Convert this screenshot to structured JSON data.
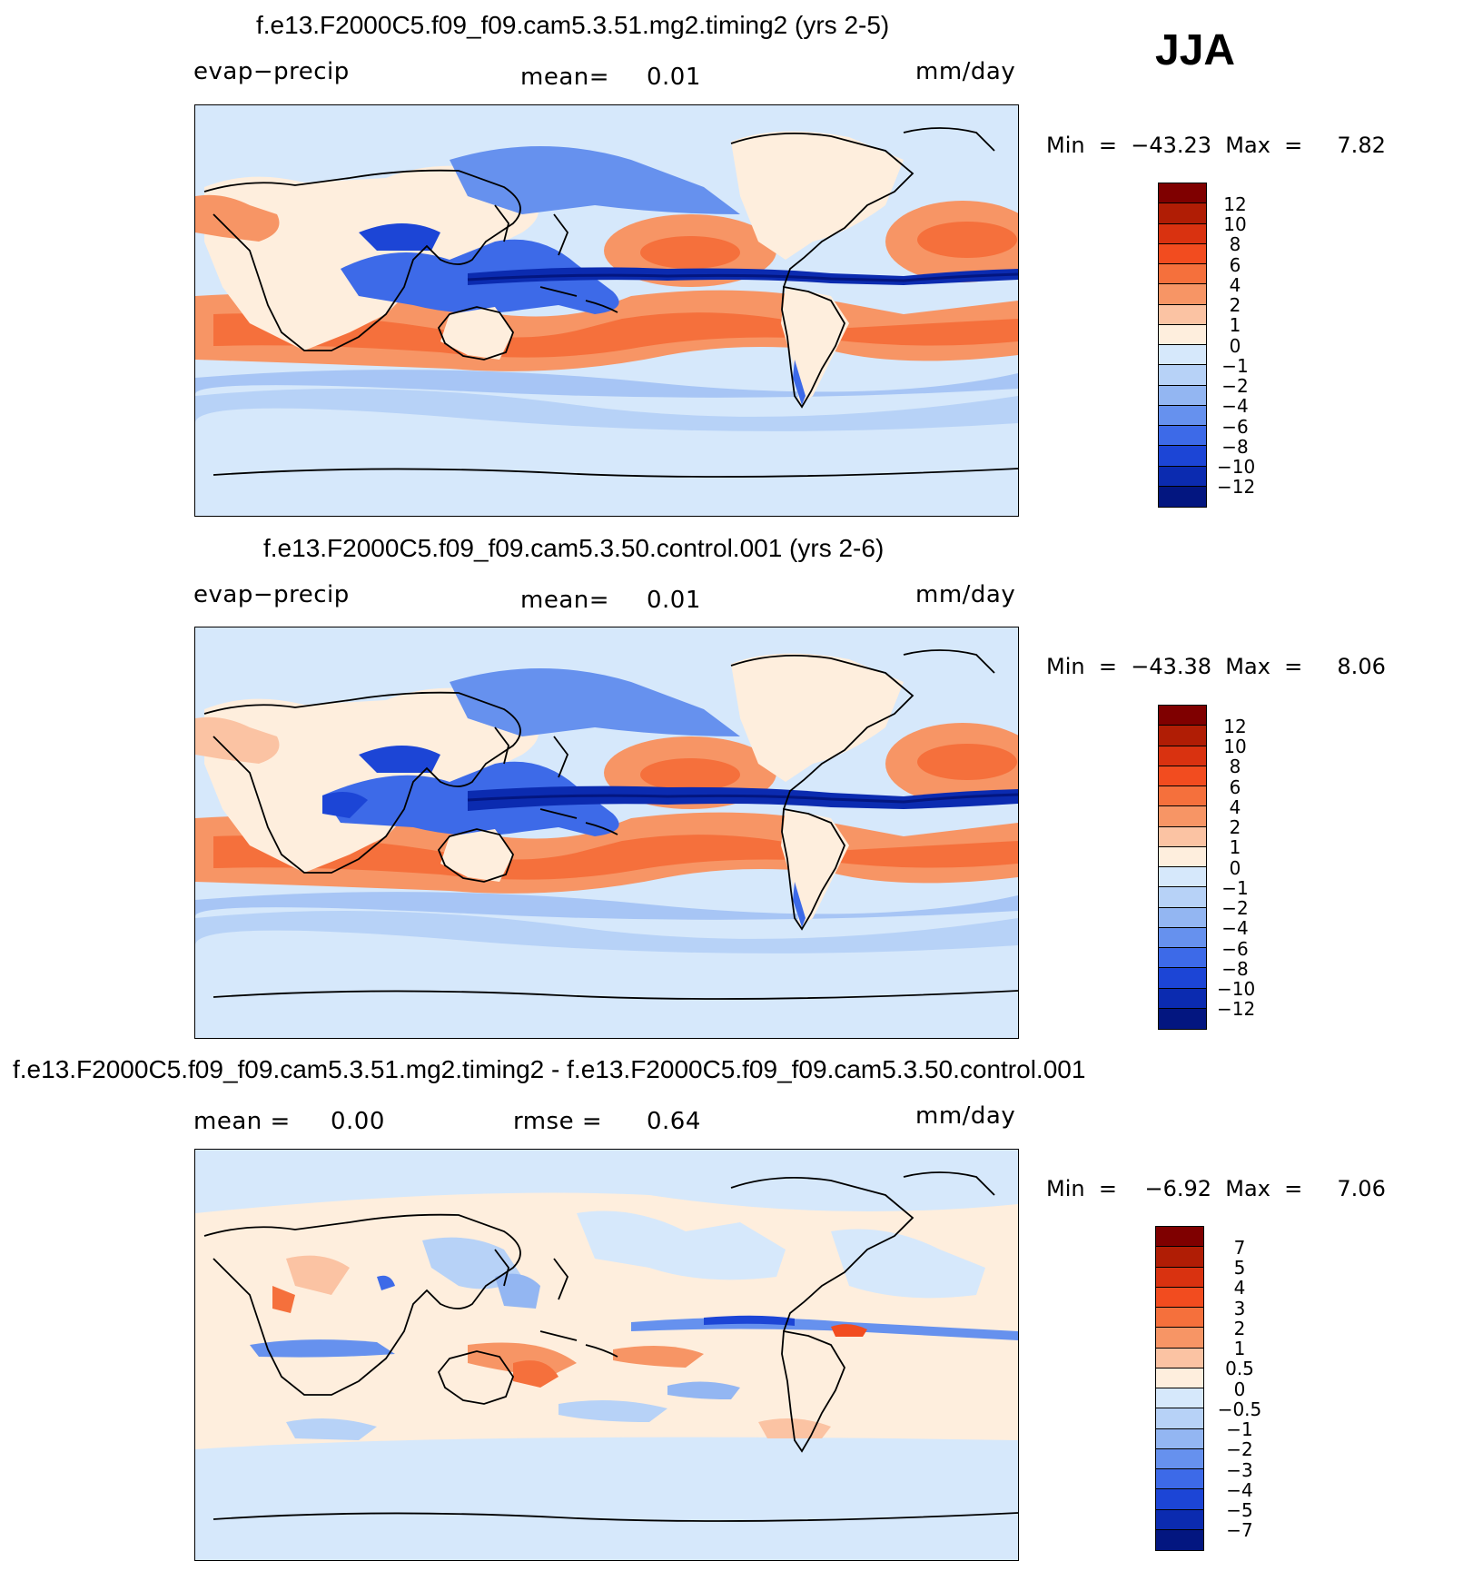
{
  "season": "JJA",
  "panels": [
    {
      "title": "f.e13.F2000C5.f09_f09.cam5.3.51.mg2.timing2 (yrs 2-5)",
      "left_label": "evap−precip",
      "center_label": "mean=",
      "center_value": "0.01",
      "units": "mm/day",
      "minmax": "Min  =  −43.23  Max  =     7.82",
      "colorbar_labels": [
        "12",
        "10",
        "8",
        "6",
        "4",
        "2",
        "1",
        "0",
        "−1",
        "−2",
        "−4",
        "−6",
        "−8",
        "−10",
        "−12"
      ]
    },
    {
      "title": "f.e13.F2000C5.f09_f09.cam5.3.50.control.001 (yrs 2-6)",
      "left_label": "evap−precip",
      "center_label": "mean=",
      "center_value": "0.01",
      "units": "mm/day",
      "minmax": "Min  =  −43.38  Max  =     8.06",
      "colorbar_labels": [
        "12",
        "10",
        "8",
        "6",
        "4",
        "2",
        "1",
        "0",
        "−1",
        "−2",
        "−4",
        "−6",
        "−8",
        "−10",
        "−12"
      ]
    },
    {
      "title": "f.e13.F2000C5.f09_f09.cam5.3.51.mg2.timing2 - f.e13.F2000C5.f09_f09.cam5.3.50.control.001",
      "left_label": "mean =",
      "left_value": "0.00",
      "center_label": "rmse =",
      "center_value": "0.64",
      "units": "mm/day",
      "minmax": "Min  =    −6.92  Max  =     7.06",
      "colorbar_labels": [
        "7",
        "5",
        "4",
        "3",
        "2",
        "1",
        "0.5",
        "0",
        "−0.5",
        "−1",
        "−2",
        "−3",
        "−4",
        "−5",
        "−7"
      ]
    }
  ],
  "colors": {
    "scale": [
      "#7f0000",
      "#b01d05",
      "#d93210",
      "#f24c1f",
      "#f5703c",
      "#f79565",
      "#fbc3a3",
      "#feeedd",
      "#d6e8fb",
      "#b7d2f7",
      "#93b6f2",
      "#6691ee",
      "#3d6ae8",
      "#1c45d6",
      "#0b2bb0",
      "#031680"
    ],
    "ocean_background": "#d6e8fb",
    "coast": "#000000"
  }
}
